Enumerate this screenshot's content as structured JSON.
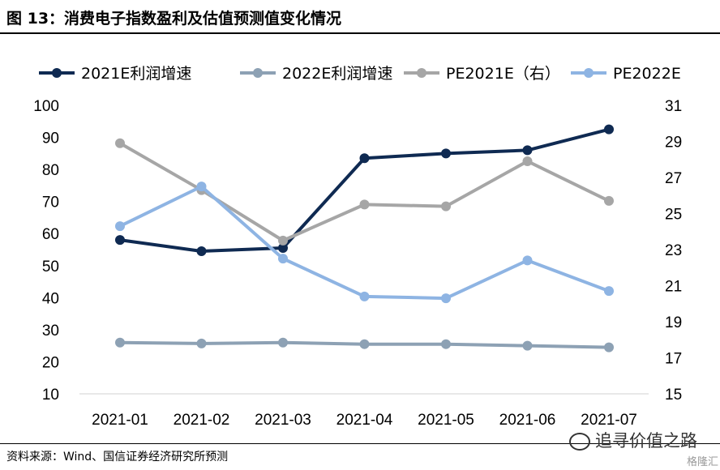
{
  "header": {
    "title": "图  13：消费电子指数盈利及估值预测值变化情况"
  },
  "footer": {
    "source": "资料来源：Wind、国信证券经济研究所预测",
    "watermark": "追寻价值之路",
    "corner_logo": "格隆汇"
  },
  "chart_data": {
    "type": "line",
    "categories": [
      "2021-01",
      "2021-02",
      "2021-03",
      "2021-04",
      "2021-05",
      "2021-06",
      "2021-07"
    ],
    "y_left": {
      "min": 10,
      "max": 100,
      "ticks": [
        100,
        90,
        80,
        70,
        60,
        50,
        40,
        30,
        20,
        10
      ]
    },
    "y_right": {
      "min": 15,
      "max": 31,
      "ticks": [
        31,
        29,
        27,
        25,
        23,
        21,
        19,
        17,
        15
      ]
    },
    "grid": false,
    "legend_position": "top",
    "series": [
      {
        "name": "2021E利润增速",
        "axis": "left",
        "color": "#0f2a52",
        "values": [
          58,
          54.5,
          55.5,
          83.5,
          85,
          86,
          92.5
        ]
      },
      {
        "name": "2022E利润增速",
        "axis": "left",
        "color": "#8da1b4",
        "values": [
          26,
          25.7,
          26,
          25.5,
          25.5,
          25,
          24.5
        ]
      },
      {
        "name": "PE2021E（右）",
        "axis": "right",
        "color": "#a6a6a6",
        "values": [
          28.9,
          26.3,
          23.5,
          25.5,
          25.4,
          27.9,
          25.7
        ]
      },
      {
        "name": "PE2022E",
        "axis": "right",
        "color": "#8eb4e3",
        "values": [
          24.3,
          26.5,
          22.5,
          20.4,
          20.3,
          22.4,
          20.7
        ]
      }
    ]
  }
}
